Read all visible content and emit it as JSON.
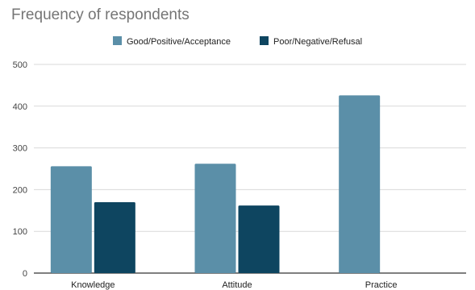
{
  "chart_data": {
    "type": "bar",
    "title": "Frequency of respondents",
    "categories": [
      "Knowledge",
      "Attitude",
      "Practice"
    ],
    "series": [
      {
        "name": "Good/Positive/Acceptance",
        "values": [
          256,
          262,
          426
        ],
        "color": "#5b8fa8"
      },
      {
        "name": "Poor/Negative/Refusal",
        "values": [
          170,
          162,
          0
        ],
        "color": "#0e4560"
      }
    ],
    "xlabel": "",
    "ylabel": "",
    "ylim": [
      0,
      500
    ],
    "yticks": [
      0,
      100,
      200,
      300,
      400,
      500
    ],
    "grid": true,
    "legend": "top-center"
  }
}
